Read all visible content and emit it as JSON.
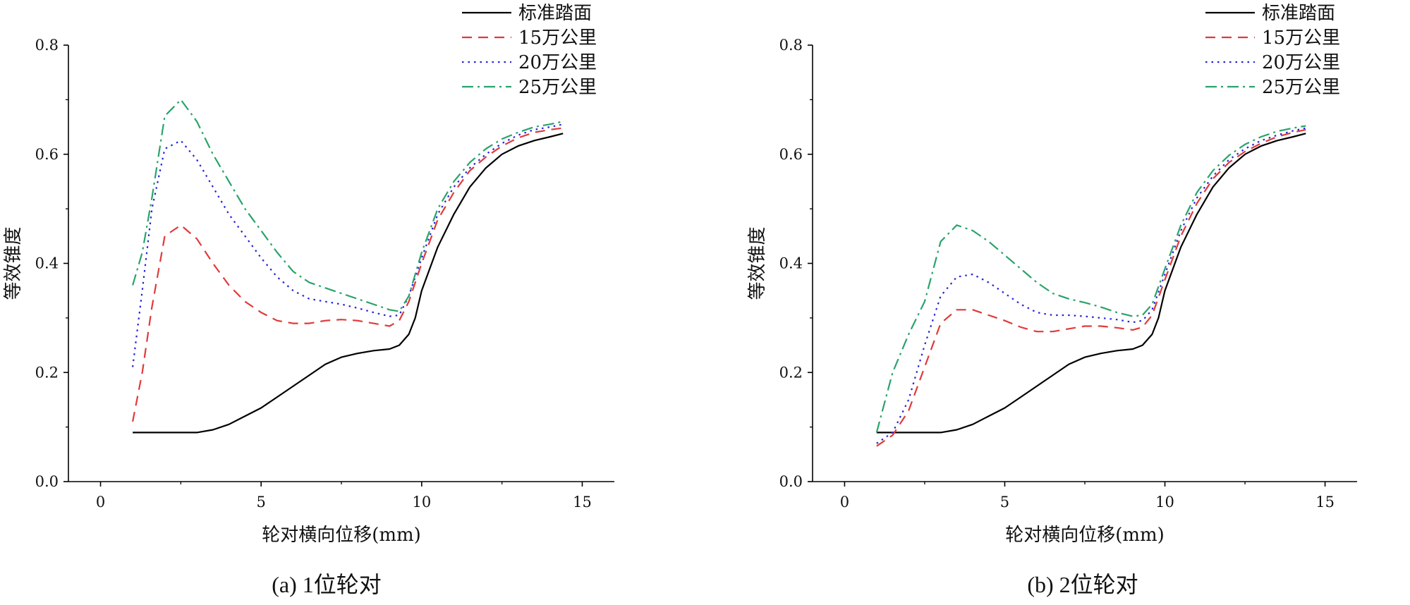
{
  "chart_data": [
    {
      "type": "line",
      "caption": "(a) 1位轮对",
      "xlabel": "轮对横向位移(mm)",
      "ylabel": "等效锥度",
      "xlim": [
        -1,
        16
      ],
      "ylim": [
        0,
        0.8
      ],
      "xticks": [
        "0",
        "5",
        "10",
        "15"
      ],
      "yticks": [
        "0.0",
        "0.2",
        "0.4",
        "0.6",
        "0.8"
      ],
      "legend_position": "top-right",
      "grid": false,
      "series": [
        {
          "name": "标准踏面",
          "color": "#000000",
          "dash": "solid",
          "x": [
            1.0,
            2.0,
            3.0,
            3.5,
            4.0,
            4.5,
            5.0,
            5.5,
            6.0,
            6.5,
            7.0,
            7.5,
            8.0,
            8.5,
            9.0,
            9.3,
            9.6,
            9.8,
            10.0,
            10.5,
            11.0,
            11.5,
            12.0,
            12.5,
            13.0,
            13.5,
            14.0,
            14.4
          ],
          "y": [
            0.09,
            0.09,
            0.09,
            0.095,
            0.105,
            0.12,
            0.135,
            0.155,
            0.175,
            0.195,
            0.215,
            0.228,
            0.235,
            0.24,
            0.243,
            0.25,
            0.27,
            0.3,
            0.35,
            0.43,
            0.49,
            0.54,
            0.575,
            0.6,
            0.615,
            0.625,
            0.632,
            0.638
          ]
        },
        {
          "name": "15万公里",
          "color": "#e03a3a",
          "dash": "dashed",
          "x": [
            1.0,
            1.3,
            1.6,
            2.0,
            2.5,
            3.0,
            3.5,
            4.0,
            4.5,
            5.0,
            5.5,
            6.0,
            6.5,
            7.0,
            7.5,
            8.0,
            8.5,
            9.0,
            9.3,
            9.6,
            10.0,
            10.5,
            11.0,
            11.5,
            12.0,
            12.5,
            13.0,
            13.5,
            14.0,
            14.4
          ],
          "y": [
            0.11,
            0.2,
            0.32,
            0.45,
            0.47,
            0.445,
            0.4,
            0.36,
            0.33,
            0.31,
            0.295,
            0.29,
            0.29,
            0.295,
            0.297,
            0.295,
            0.29,
            0.285,
            0.295,
            0.33,
            0.4,
            0.48,
            0.53,
            0.57,
            0.595,
            0.615,
            0.63,
            0.64,
            0.645,
            0.648
          ]
        },
        {
          "name": "20万公里",
          "color": "#2323d8",
          "dash": "dotted",
          "x": [
            1.0,
            1.3,
            1.6,
            2.0,
            2.5,
            3.0,
            3.5,
            4.0,
            4.5,
            5.0,
            5.5,
            6.0,
            6.5,
            7.0,
            7.5,
            8.0,
            8.5,
            9.0,
            9.3,
            9.6,
            10.0,
            10.5,
            11.0,
            11.5,
            12.0,
            12.5,
            13.0,
            13.5,
            14.0,
            14.4
          ],
          "y": [
            0.21,
            0.35,
            0.5,
            0.61,
            0.625,
            0.59,
            0.54,
            0.49,
            0.45,
            0.41,
            0.375,
            0.35,
            0.335,
            0.33,
            0.325,
            0.318,
            0.31,
            0.303,
            0.305,
            0.34,
            0.41,
            0.49,
            0.54,
            0.575,
            0.6,
            0.62,
            0.635,
            0.645,
            0.65,
            0.655
          ]
        },
        {
          "name": "25万公里",
          "color": "#2aa36b",
          "dash": "dashdot",
          "x": [
            1.0,
            1.3,
            1.6,
            2.0,
            2.5,
            3.0,
            3.5,
            4.0,
            4.5,
            5.0,
            5.5,
            6.0,
            6.5,
            7.0,
            7.5,
            8.0,
            8.5,
            9.0,
            9.3,
            9.6,
            10.0,
            10.5,
            11.0,
            11.5,
            12.0,
            12.5,
            13.0,
            13.5,
            14.0,
            14.4
          ],
          "y": [
            0.36,
            0.42,
            0.52,
            0.67,
            0.7,
            0.66,
            0.6,
            0.55,
            0.5,
            0.46,
            0.42,
            0.385,
            0.365,
            0.355,
            0.345,
            0.335,
            0.325,
            0.315,
            0.312,
            0.34,
            0.42,
            0.5,
            0.55,
            0.585,
            0.61,
            0.628,
            0.64,
            0.65,
            0.655,
            0.66
          ]
        }
      ]
    },
    {
      "type": "line",
      "caption": "(b) 2位轮对",
      "xlabel": "轮对横向位移(mm)",
      "ylabel": "等效锥度",
      "xlim": [
        -1,
        16
      ],
      "ylim": [
        0,
        0.8
      ],
      "xticks": [
        "0",
        "5",
        "10",
        "15"
      ],
      "yticks": [
        "0.0",
        "0.2",
        "0.4",
        "0.6",
        "0.8"
      ],
      "legend_position": "top-right",
      "grid": false,
      "series": [
        {
          "name": "标准踏面",
          "color": "#000000",
          "dash": "solid",
          "x": [
            1.0,
            2.0,
            3.0,
            3.5,
            4.0,
            4.5,
            5.0,
            5.5,
            6.0,
            6.5,
            7.0,
            7.5,
            8.0,
            8.5,
            9.0,
            9.3,
            9.6,
            9.8,
            10.0,
            10.5,
            11.0,
            11.5,
            12.0,
            12.5,
            13.0,
            13.5,
            14.0,
            14.4
          ],
          "y": [
            0.09,
            0.09,
            0.09,
            0.095,
            0.105,
            0.12,
            0.135,
            0.155,
            0.175,
            0.195,
            0.215,
            0.228,
            0.235,
            0.24,
            0.243,
            0.25,
            0.27,
            0.3,
            0.35,
            0.43,
            0.49,
            0.54,
            0.575,
            0.6,
            0.615,
            0.625,
            0.632,
            0.638
          ]
        },
        {
          "name": "15万公里",
          "color": "#e03a3a",
          "dash": "dashed",
          "x": [
            1.0,
            1.5,
            2.0,
            2.5,
            3.0,
            3.5,
            4.0,
            4.5,
            5.0,
            5.5,
            6.0,
            6.5,
            7.0,
            7.5,
            8.0,
            8.5,
            9.0,
            9.3,
            9.6,
            10.0,
            10.5,
            11.0,
            11.5,
            12.0,
            12.5,
            13.0,
            13.5,
            14.0,
            14.4
          ],
          "y": [
            0.065,
            0.085,
            0.13,
            0.21,
            0.29,
            0.315,
            0.315,
            0.305,
            0.295,
            0.283,
            0.275,
            0.275,
            0.28,
            0.285,
            0.285,
            0.282,
            0.278,
            0.283,
            0.305,
            0.37,
            0.45,
            0.51,
            0.555,
            0.585,
            0.605,
            0.62,
            0.632,
            0.64,
            0.645
          ]
        },
        {
          "name": "20万公里",
          "color": "#2323d8",
          "dash": "dotted",
          "x": [
            1.0,
            1.5,
            2.0,
            2.5,
            3.0,
            3.5,
            4.0,
            4.5,
            5.0,
            5.5,
            6.0,
            6.5,
            7.0,
            7.5,
            8.0,
            8.5,
            9.0,
            9.3,
            9.6,
            10.0,
            10.5,
            11.0,
            11.5,
            12.0,
            12.5,
            13.0,
            13.5,
            14.0,
            14.4
          ],
          "y": [
            0.07,
            0.09,
            0.15,
            0.25,
            0.34,
            0.375,
            0.38,
            0.365,
            0.345,
            0.325,
            0.31,
            0.305,
            0.305,
            0.303,
            0.3,
            0.297,
            0.292,
            0.295,
            0.315,
            0.38,
            0.46,
            0.52,
            0.56,
            0.59,
            0.61,
            0.625,
            0.635,
            0.643,
            0.648
          ]
        },
        {
          "name": "25万公里",
          "color": "#2aa36b",
          "dash": "dashdot",
          "x": [
            1.0,
            1.5,
            2.0,
            2.5,
            3.0,
            3.5,
            4.0,
            4.5,
            5.0,
            5.5,
            6.0,
            6.5,
            7.0,
            7.5,
            8.0,
            8.5,
            9.0,
            9.3,
            9.6,
            10.0,
            10.5,
            11.0,
            11.5,
            12.0,
            12.5,
            13.0,
            13.5,
            14.0,
            14.4
          ],
          "y": [
            0.09,
            0.2,
            0.27,
            0.33,
            0.44,
            0.47,
            0.46,
            0.44,
            0.415,
            0.39,
            0.365,
            0.345,
            0.335,
            0.328,
            0.32,
            0.31,
            0.303,
            0.305,
            0.325,
            0.39,
            0.47,
            0.53,
            0.57,
            0.598,
            0.618,
            0.632,
            0.642,
            0.648,
            0.652
          ]
        }
      ]
    }
  ]
}
